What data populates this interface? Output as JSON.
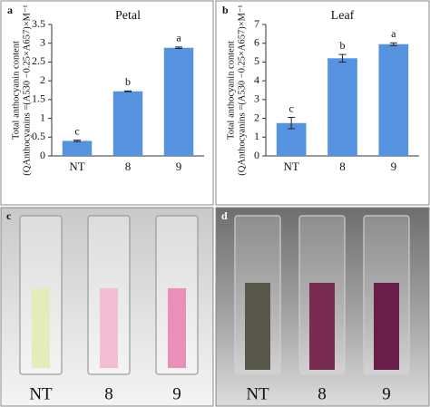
{
  "chart_data": [
    {
      "type": "bar",
      "panel": "a",
      "title": "Petal",
      "y_label": [
        "Total anthocyanin content",
        "(QAnthocyanins =(A530 −0.25×A657)×M⁻¹"
      ],
      "categories": [
        "NT",
        "8",
        "9"
      ],
      "values": [
        0.4,
        1.72,
        2.88
      ],
      "errors": [
        0.02,
        0.01,
        0.02
      ],
      "annotations": [
        "c",
        "b",
        "a"
      ],
      "color": "#5593e0",
      "ylim": [
        0,
        3.5
      ],
      "yticks": [
        0,
        0.5,
        1,
        1.5,
        2,
        2.5,
        3,
        3.5
      ]
    },
    {
      "type": "bar",
      "panel": "b",
      "title": "Leaf",
      "y_label": [
        "Total anthocyanin content",
        "(QAnthocyanins =(A530 −0.25×A657)×M⁻¹"
      ],
      "categories": [
        "NT",
        "8",
        "9"
      ],
      "values": [
        1.75,
        5.2,
        5.95
      ],
      "errors": [
        0.3,
        0.2,
        0.07
      ],
      "annotations": [
        "c",
        "b",
        "a"
      ],
      "color": "#5593e0",
      "ylim": [
        0,
        7
      ],
      "yticks": [
        0,
        1,
        2,
        3,
        4,
        5,
        6,
        7
      ]
    }
  ],
  "photos": [
    {
      "panel": "c",
      "labels": [
        "NT",
        "8",
        "9"
      ]
    },
    {
      "panel": "d",
      "labels": [
        "NT",
        "8",
        "9"
      ]
    }
  ]
}
